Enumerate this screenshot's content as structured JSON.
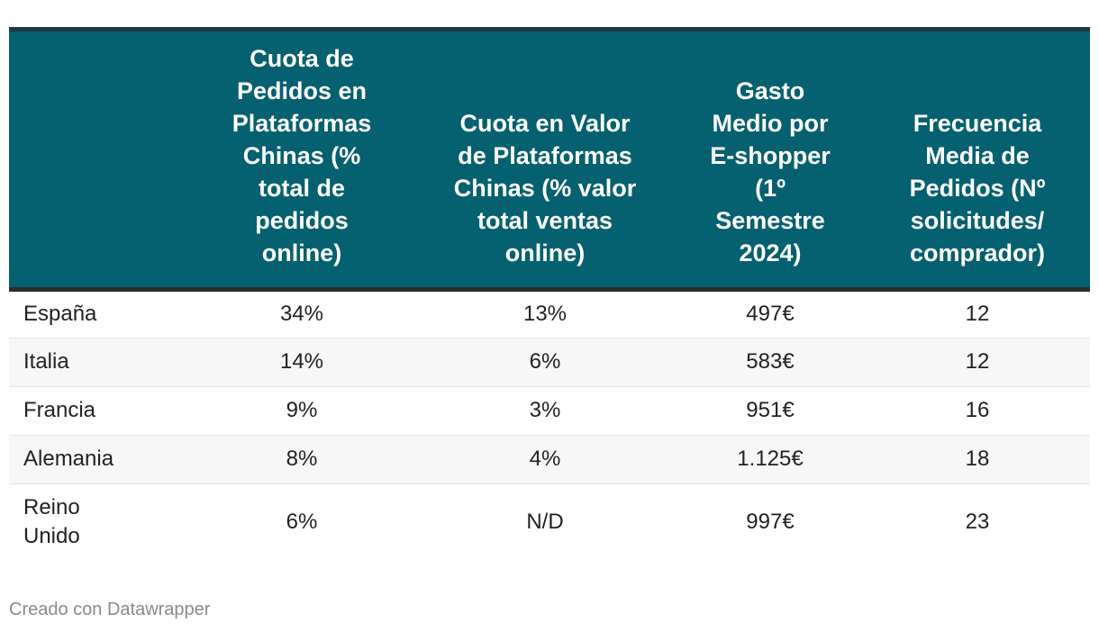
{
  "chart_data": {
    "type": "table",
    "columns": [
      "",
      "Cuota de Pedidos en Plataformas Chinas (% total de pedidos online)",
      "Cuota en Valor de Plataformas Chinas (% valor total ventas online)",
      "Gasto Medio por E-shopper (1º Semestre 2024)",
      "Frecuencia Media de Pedidos (Nº solicitudes/ comprador)"
    ],
    "rows": [
      [
        "España",
        "34%",
        "13%",
        "497€",
        "12"
      ],
      [
        "Italia",
        "14%",
        "6%",
        "583€",
        "12"
      ],
      [
        "Francia",
        "9%",
        "3%",
        "951€",
        "16"
      ],
      [
        "Alemania",
        "8%",
        "4%",
        "1.125€",
        "18"
      ],
      [
        "Reino Unido",
        "6%",
        "N/D",
        "997€",
        "23"
      ]
    ]
  },
  "footer": {
    "credit": "Creado con Datawrapper"
  },
  "colors": {
    "header_bg": "#05606f",
    "header_text": "#ffffff",
    "top_rule": "#1b3b47",
    "divider": "#2b2b2b",
    "row_alt": "#f7f7f7",
    "credit_text": "#8a8a8a"
  }
}
